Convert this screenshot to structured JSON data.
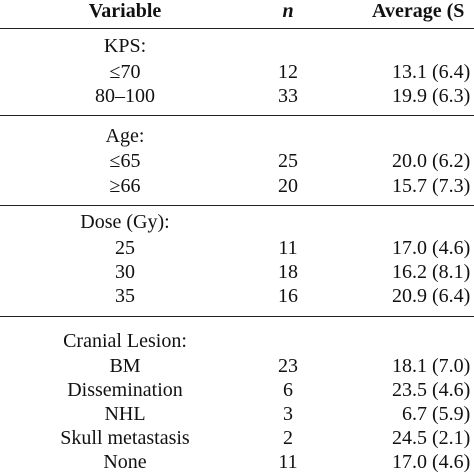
{
  "table": {
    "headers": {
      "variable": "Variable",
      "n": "n",
      "average": "Average (S"
    },
    "groups": [
      {
        "label": "KPS:",
        "rows": [
          {
            "variable": "≤70",
            "n": "12",
            "average": "13.1 (6.4)"
          },
          {
            "variable": "80–100",
            "n": "33",
            "average": "19.9 (6.3)"
          }
        ]
      },
      {
        "label": "Age:",
        "rows": [
          {
            "variable": "≤65",
            "n": "25",
            "average": "20.0 (6.2)"
          },
          {
            "variable": "≥66",
            "n": "20",
            "average": "15.7 (7.3)"
          }
        ]
      },
      {
        "label": "Dose (Gy):",
        "rows": [
          {
            "variable": "25",
            "n": "11",
            "average": "17.0 (4.6)"
          },
          {
            "variable": "30",
            "n": "18",
            "average": "16.2 (8.1)"
          },
          {
            "variable": "35",
            "n": "16",
            "average": "20.9 (6.4)"
          }
        ]
      },
      {
        "label": "Cranial Lesion:",
        "rows": [
          {
            "variable": "BM",
            "n": "23",
            "average": "18.1 (7.0)"
          },
          {
            "variable": "Dissemination",
            "n": "6",
            "average": "23.5 (4.6)"
          },
          {
            "variable": "NHL",
            "n": "3",
            "average": "6.7 (5.9)"
          },
          {
            "variable": "Skull metastasis",
            "n": "2",
            "average": "24.5 (2.1)"
          },
          {
            "variable": "None",
            "n": "11",
            "average": "17.0 (4.6)"
          }
        ]
      }
    ]
  }
}
